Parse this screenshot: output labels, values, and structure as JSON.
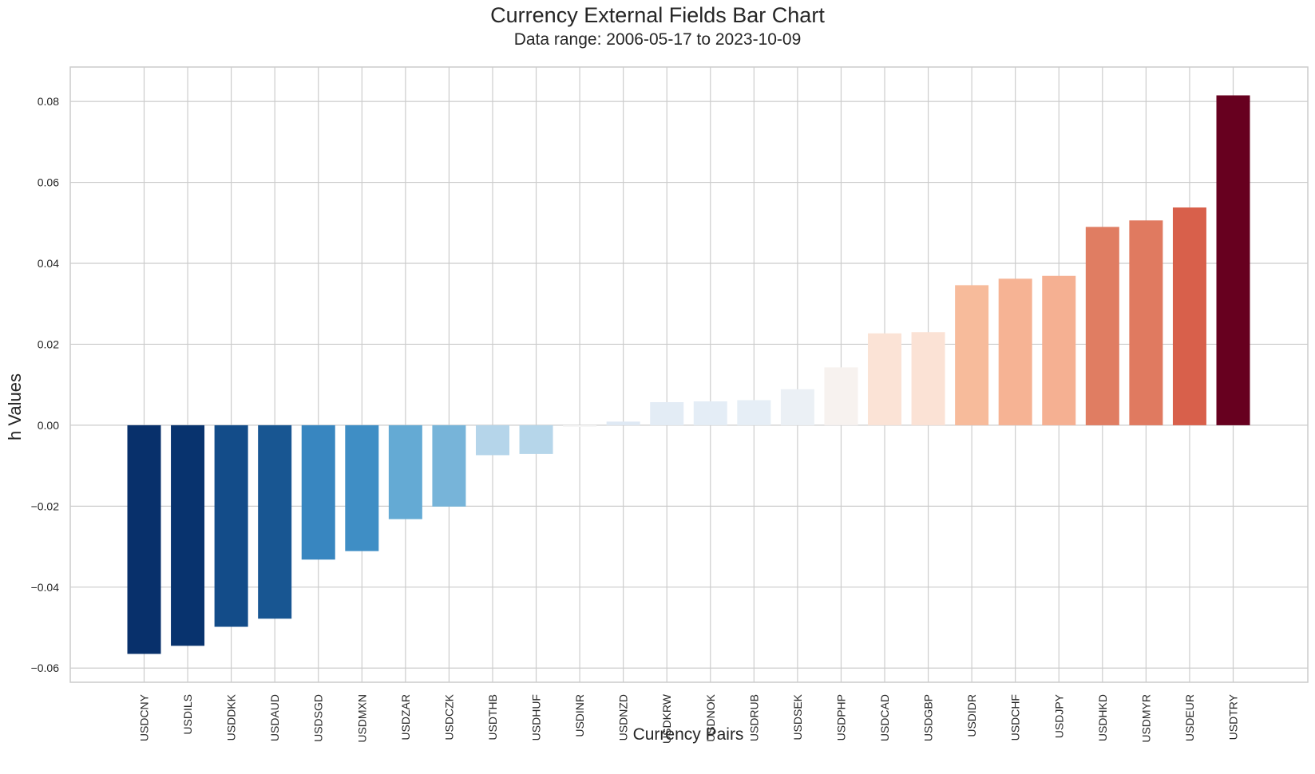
{
  "chart_data": {
    "type": "bar",
    "title": "Currency External Fields Bar Chart",
    "subtitle": "Data range: 2006-05-17 to 2023-10-09",
    "xlabel": "Currency Pairs",
    "ylabel": "h Values",
    "ylim": [
      -0.0635,
      0.0885
    ],
    "yticks": [
      -0.06,
      -0.04,
      -0.02,
      0.0,
      0.02,
      0.04,
      0.06,
      0.08
    ],
    "ytick_labels": [
      "−0.06",
      "−0.04",
      "−0.02",
      "0.00",
      "0.02",
      "0.04",
      "0.06",
      "0.08"
    ],
    "grid": true,
    "colormap": "RdBu_r",
    "categories": [
      "USDCNY",
      "USDILS",
      "USDDKK",
      "USDAUD",
      "USDSGD",
      "USDMXN",
      "USDZAR",
      "USDCZK",
      "USDTHB",
      "USDHUF",
      "USDINR",
      "USDNZD",
      "USDKRW",
      "USDNOK",
      "USDRUB",
      "USDSEK",
      "USDPHP",
      "USDCAD",
      "USDGBP",
      "USDIDR",
      "USDCHF",
      "USDJPY",
      "USDHKD",
      "USDMYR",
      "USDEUR",
      "USDTRY"
    ],
    "values": [
      -0.0565,
      -0.0545,
      -0.0498,
      -0.0478,
      -0.0332,
      -0.0311,
      -0.0232,
      -0.0201,
      -0.0074,
      -0.0071,
      -0.0004,
      0.0009,
      0.0057,
      0.0059,
      0.0062,
      0.0089,
      0.0143,
      0.0227,
      0.023,
      0.0346,
      0.0362,
      0.0369,
      0.049,
      0.0506,
      0.0538,
      0.0815
    ],
    "colors": [
      "#08306b",
      "#08336e",
      "#134c89",
      "#185692",
      "#3886c0",
      "#3f8ec5",
      "#64aad4",
      "#77b4d9",
      "#b5d5ea",
      "#b6d6ea",
      "#f5f5f5",
      "#dfe9f4",
      "#e3ecf5",
      "#e4edf6",
      "#e6eef6",
      "#ebf0f5",
      "#f7f2ef",
      "#fbe3d6",
      "#fbe2d5",
      "#f7bb9b",
      "#f6b394",
      "#f5b092",
      "#e07d62",
      "#e07a60",
      "#d8604b",
      "#67001f"
    ]
  }
}
